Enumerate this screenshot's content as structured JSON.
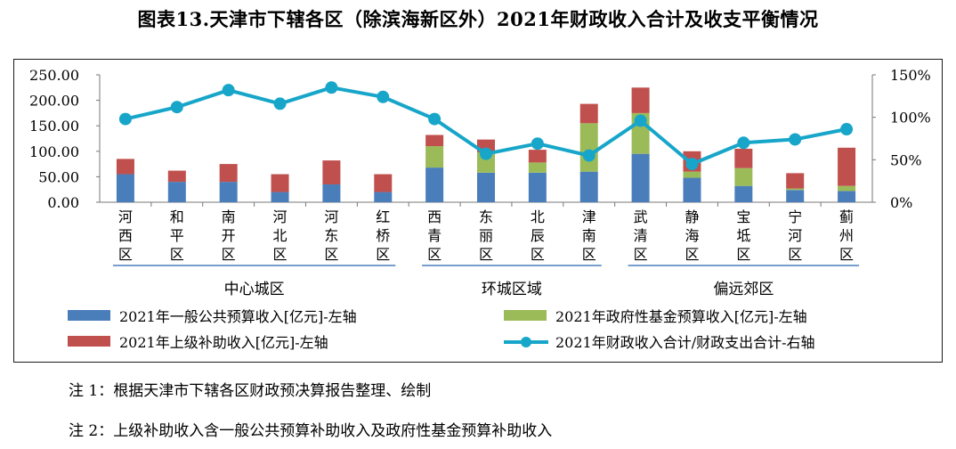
{
  "title": "图表13.天津市下辖各区（除滨海新区外）2021年财政收入合计及收支平衡情况",
  "notes": {
    "note1": "注 1：根据天津市下辖各区财政预决算报告整理、绘制",
    "note2": "注 2：上级补助收入含一般公共预算补助收入及政府性基金预算补助收入"
  },
  "chart_data": {
    "type": "bar",
    "stacked": true,
    "categories": [
      "河西区",
      "和平区",
      "南开区",
      "河北区",
      "河东区",
      "红桥区",
      "西青区",
      "东丽区",
      "北辰区",
      "津南区",
      "武清区",
      "静海区",
      "宝坻区",
      "宁河区",
      "蓟州区"
    ],
    "groups": [
      {
        "name": "中心城区",
        "from": 0,
        "to": 5
      },
      {
        "name": "环城区域",
        "from": 6,
        "to": 9
      },
      {
        "name": "偏远郊区",
        "from": 10,
        "to": 14
      }
    ],
    "series": [
      {
        "name": "2021年一般公共预算收入[亿元]-左轴",
        "axis": "left",
        "kind": "bar",
        "color": "#4a7ebb",
        "values": [
          55,
          40,
          40,
          20,
          35,
          20,
          68,
          58,
          58,
          60,
          95,
          48,
          32,
          24,
          22
        ]
      },
      {
        "name": "2021年政府性基金预算收入[亿元]-左轴",
        "axis": "left",
        "kind": "bar",
        "color": "#9bbb59",
        "values": [
          0,
          0,
          0,
          0,
          0,
          0,
          42,
          40,
          20,
          95,
          80,
          12,
          35,
          3,
          10
        ]
      },
      {
        "name": "2021年上级补助收入[亿元]-左轴",
        "axis": "left",
        "kind": "bar",
        "color": "#c0504d",
        "values": [
          30,
          22,
          35,
          35,
          47,
          35,
          22,
          25,
          25,
          38,
          50,
          40,
          38,
          30,
          75
        ]
      },
      {
        "name": "2021年财政收入合计/财政支出合计-右轴",
        "axis": "right",
        "kind": "line",
        "color": "#17a6c9",
        "values": [
          98,
          112,
          132,
          116,
          135,
          124,
          98,
          57,
          69,
          55,
          96,
          45,
          70,
          74,
          86
        ]
      }
    ],
    "left_axis": {
      "min": 0,
      "max": 250,
      "ticks": [
        "0.00",
        "50.00",
        "100.00",
        "150.00",
        "200.00",
        "250.00"
      ]
    },
    "right_axis": {
      "min": 0,
      "max": 150,
      "ticks": [
        "0%",
        "50%",
        "100%",
        "150%"
      ]
    },
    "legend_position": "bottom"
  }
}
